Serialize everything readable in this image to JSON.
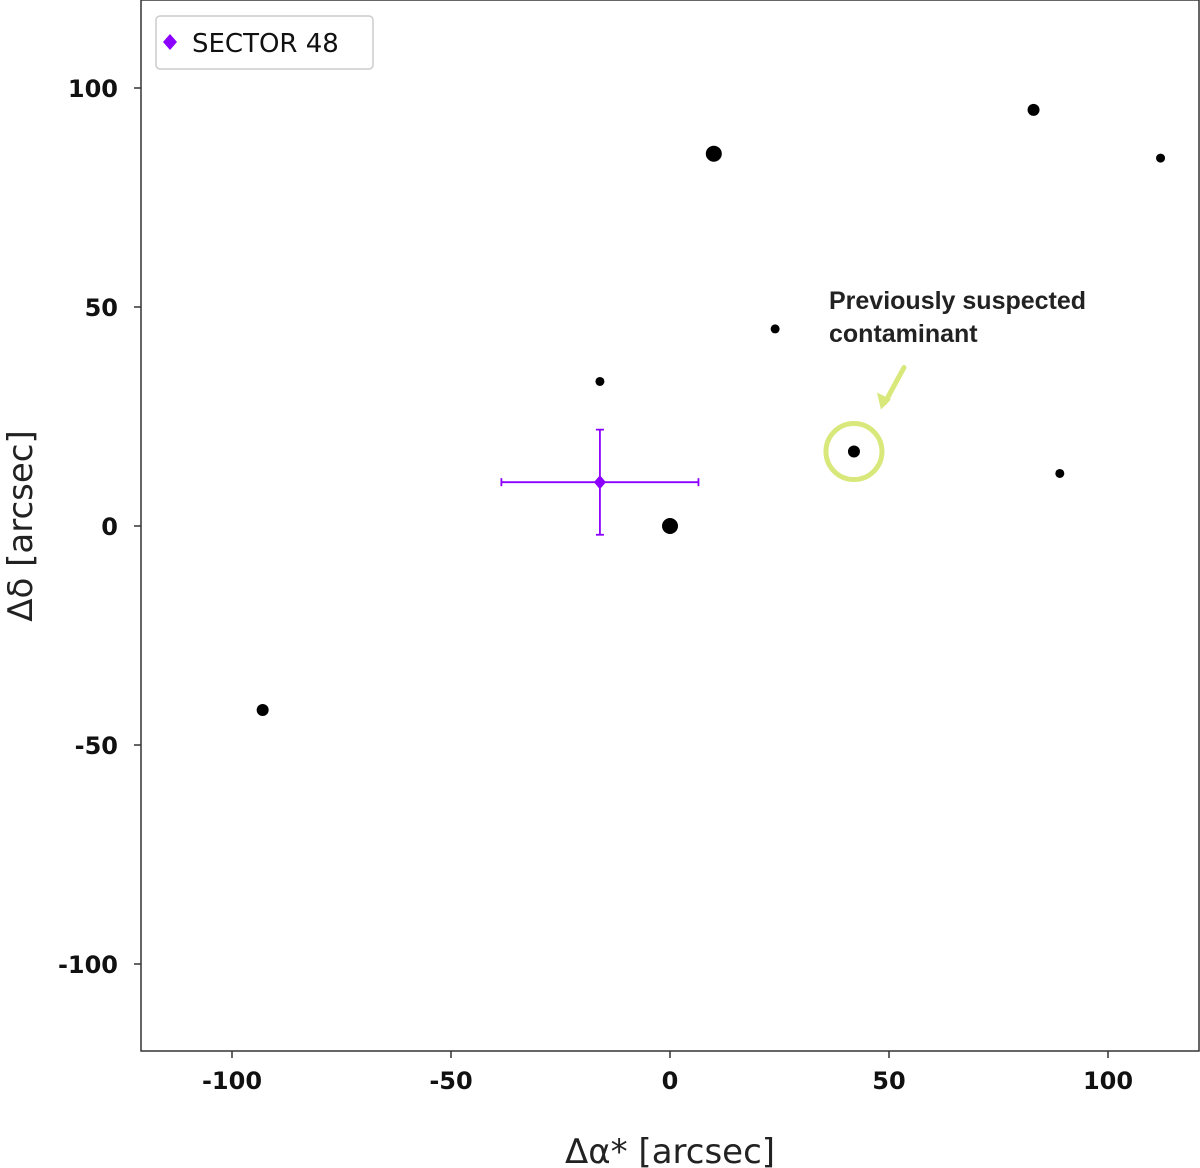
{
  "chart_data": {
    "type": "scatter",
    "xlabel": "Δα* [arcsec]",
    "ylabel": "Δδ [arcsec]",
    "xlim": [
      -120,
      120
    ],
    "ylim": [
      -120,
      120
    ],
    "xticks": [
      -100,
      -50,
      0,
      50,
      100
    ],
    "yticks": [
      100,
      50,
      0,
      -50,
      -100
    ],
    "grid": false,
    "legend_position": "top-left",
    "stars": [
      {
        "x": 0,
        "y": 0,
        "size": "large"
      },
      {
        "x": 10,
        "y": 85,
        "size": "large"
      },
      {
        "x": 83,
        "y": 95,
        "size": "medium"
      },
      {
        "x": 112,
        "y": 84,
        "size": "small"
      },
      {
        "x": 24,
        "y": 45,
        "size": "small"
      },
      {
        "x": -16,
        "y": 33,
        "size": "small"
      },
      {
        "x": 42,
        "y": 17,
        "size": "medium"
      },
      {
        "x": 89,
        "y": 12,
        "size": "small"
      },
      {
        "x": -93,
        "y": -42,
        "size": "medium"
      }
    ],
    "series": [
      {
        "name": "SECTOR 48",
        "color": "#8b00ff",
        "marker": "diamond",
        "x": -16,
        "y": 10,
        "xerr": [
          22.5,
          22.5
        ],
        "yerr": [
          12,
          12
        ]
      }
    ],
    "annotation": {
      "lines": [
        "Previously suspected",
        "contaminant"
      ],
      "target": {
        "x": 42,
        "y": 17
      },
      "color": "#d8e87a"
    }
  }
}
